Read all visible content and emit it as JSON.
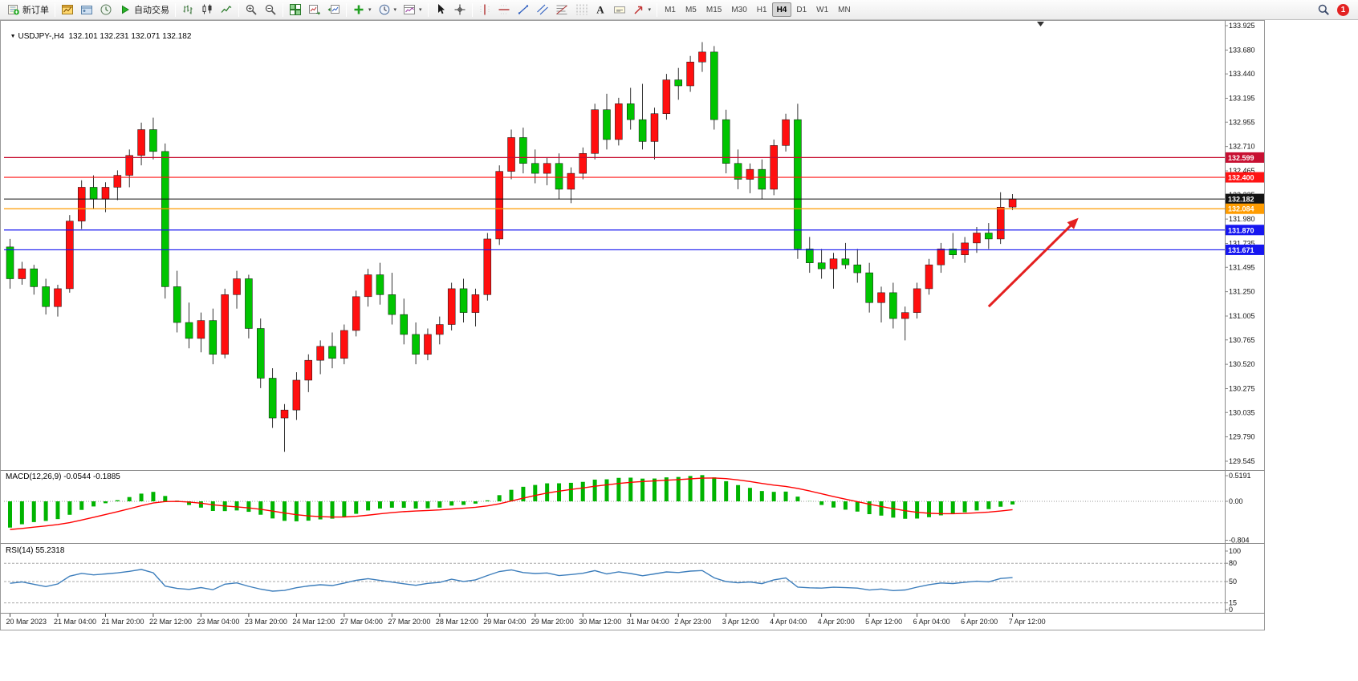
{
  "toolbar": {
    "items": [
      {
        "name": "new-order-button",
        "icon": "new-order",
        "label": "新订单"
      },
      {
        "sep": true
      },
      {
        "name": "charts-button",
        "icon": "chart-window"
      },
      {
        "name": "profiles-button",
        "icon": "profiles"
      },
      {
        "name": "market-watch-button",
        "icon": "market-watch"
      },
      {
        "name": "autotrading-button",
        "icon": "play",
        "label": "自动交易"
      },
      {
        "sep": true
      },
      {
        "name": "bars-chart-type-button",
        "icon": "bars"
      },
      {
        "name": "candles-chart-type-button",
        "icon": "candles"
      },
      {
        "name": "line-chart-type-button",
        "icon": "linechart"
      },
      {
        "sep": true
      },
      {
        "name": "zoom-in-button",
        "icon": "zoom-in"
      },
      {
        "name": "zoom-out-button",
        "icon": "zoom-out"
      },
      {
        "sep": true
      },
      {
        "name": "tile-windows-button",
        "icon": "tile"
      },
      {
        "name": "auto-scroll-button",
        "icon": "auto-scroll"
      },
      {
        "name": "chart-shift-button",
        "icon": "chart-shift"
      },
      {
        "sep": true
      },
      {
        "name": "indicators-button",
        "icon": "indicators",
        "caret": true
      },
      {
        "name": "periods-button",
        "icon": "clock",
        "caret": true
      },
      {
        "name": "templates-button",
        "icon": "template",
        "caret": true
      },
      {
        "sep": true
      },
      {
        "name": "cursor-button",
        "icon": "cursor"
      },
      {
        "name": "crosshair-button",
        "icon": "crosshair"
      },
      {
        "sep": true
      },
      {
        "name": "vertical-line-button",
        "icon": "vline"
      },
      {
        "name": "horizontal-line-button",
        "icon": "hline"
      },
      {
        "name": "trendline-button",
        "icon": "trendline"
      },
      {
        "name": "channel-button",
        "icon": "channel"
      },
      {
        "name": "fibonacci-button",
        "icon": "fibo"
      },
      {
        "name": "cycle-lines-button",
        "icon": "grid"
      },
      {
        "name": "text-button",
        "icon": "text"
      },
      {
        "name": "text-label-button",
        "icon": "textlabel"
      },
      {
        "name": "arrows-button",
        "icon": "arrows",
        "caret": true
      },
      {
        "sep": true
      }
    ],
    "timeframes": [
      "M1",
      "M5",
      "M15",
      "M30",
      "H1",
      "H4",
      "D1",
      "W1",
      "MN"
    ],
    "active_timeframe": "H4",
    "right": {
      "notification_count": "1"
    }
  },
  "chart": {
    "header": "USDJPY-,H4  132.101 132.231 132.071 132.182",
    "macd_label": "MACD(12,26,9) -0.0544 -0.1885",
    "rsi_label": "RSI(14) 55.2318"
  },
  "chart_data": {
    "type": "candlestick",
    "symbol": "USDJPY-",
    "timeframe": "H4",
    "current_ohlc": {
      "open": 132.101,
      "high": 132.231,
      "low": 132.071,
      "close": 132.182
    },
    "bull_color": "#ff0f0f",
    "bear_color": "#00c400",
    "price_axis_ticks": [
      "133.925",
      "133.680",
      "133.440",
      "133.195",
      "132.955",
      "132.710",
      "132.465",
      "132.225",
      "131.980",
      "131.735",
      "131.495",
      "131.250",
      "131.005",
      "130.765",
      "130.520",
      "130.275",
      "130.035",
      "129.790",
      "129.545"
    ],
    "time_labels": [
      "20 Mar 2023",
      "21 Mar 04:00",
      "21 Mar 20:00",
      "22 Mar 12:00",
      "23 Mar 04:00",
      "23 Mar 20:00",
      "24 Mar 12:00",
      "27 Mar 04:00",
      "27 Mar 20:00",
      "28 Mar 12:00",
      "29 Mar 04:00",
      "29 Mar 20:00",
      "30 Mar 12:00",
      "31 Mar 04:00",
      "2 Apr 23:00",
      "3 Apr 12:00",
      "4 Apr 04:00",
      "4 Apr 20:00",
      "5 Apr 12:00",
      "6 Apr 04:00",
      "6 Apr 20:00",
      "7 Apr 12:00"
    ],
    "bars_per_label": 4,
    "candles": [
      [
        131.7,
        131.78,
        131.28,
        131.38
      ],
      [
        131.38,
        131.55,
        131.32,
        131.48
      ],
      [
        131.48,
        131.52,
        131.22,
        131.3
      ],
      [
        131.3,
        131.38,
        131.02,
        131.1
      ],
      [
        131.1,
        131.32,
        131.0,
        131.28
      ],
      [
        131.28,
        132.02,
        131.24,
        131.96
      ],
      [
        131.96,
        132.37,
        131.88,
        132.3
      ],
      [
        132.3,
        132.42,
        132.08,
        132.18
      ],
      [
        132.18,
        132.35,
        132.05,
        132.3
      ],
      [
        132.3,
        132.47,
        132.17,
        132.42
      ],
      [
        132.42,
        132.68,
        132.3,
        132.62
      ],
      [
        132.62,
        132.95,
        132.52,
        132.88
      ],
      [
        132.88,
        133.0,
        132.58,
        132.66
      ],
      [
        132.66,
        132.74,
        131.18,
        131.3
      ],
      [
        131.3,
        131.46,
        130.84,
        130.94
      ],
      [
        130.94,
        131.14,
        130.68,
        130.78
      ],
      [
        130.78,
        131.04,
        130.64,
        130.96
      ],
      [
        130.96,
        131.08,
        130.52,
        130.62
      ],
      [
        130.62,
        131.28,
        130.58,
        131.22
      ],
      [
        131.22,
        131.46,
        131.08,
        131.38
      ],
      [
        131.38,
        131.42,
        130.78,
        130.88
      ],
      [
        130.88,
        130.98,
        130.28,
        130.38
      ],
      [
        130.38,
        130.48,
        129.88,
        129.98
      ],
      [
        129.98,
        130.12,
        129.64,
        130.06
      ],
      [
        130.06,
        130.44,
        129.96,
        130.36
      ],
      [
        130.36,
        130.62,
        130.24,
        130.56
      ],
      [
        130.56,
        130.76,
        130.42,
        130.7
      ],
      [
        130.7,
        130.84,
        130.48,
        130.58
      ],
      [
        130.58,
        130.92,
        130.52,
        130.86
      ],
      [
        130.86,
        131.26,
        130.8,
        131.2
      ],
      [
        131.2,
        131.48,
        131.1,
        131.42
      ],
      [
        131.42,
        131.54,
        131.12,
        131.22
      ],
      [
        131.22,
        131.44,
        130.92,
        131.02
      ],
      [
        131.02,
        131.18,
        130.72,
        130.82
      ],
      [
        130.82,
        130.94,
        130.52,
        130.62
      ],
      [
        130.62,
        130.88,
        130.56,
        130.82
      ],
      [
        130.82,
        131.0,
        130.72,
        130.92
      ],
      [
        130.92,
        131.34,
        130.86,
        131.28
      ],
      [
        131.28,
        131.38,
        130.94,
        131.04
      ],
      [
        131.04,
        131.28,
        130.9,
        131.22
      ],
      [
        131.22,
        131.84,
        131.16,
        131.78
      ],
      [
        131.78,
        132.52,
        131.72,
        132.46
      ],
      [
        132.46,
        132.88,
        132.38,
        132.8
      ],
      [
        132.8,
        132.9,
        132.44,
        132.54
      ],
      [
        132.54,
        132.68,
        132.34,
        132.44
      ],
      [
        132.44,
        132.6,
        132.32,
        132.54
      ],
      [
        132.54,
        132.64,
        132.18,
        132.28
      ],
      [
        132.28,
        132.5,
        132.14,
        132.44
      ],
      [
        132.44,
        132.7,
        132.38,
        132.64
      ],
      [
        132.64,
        133.14,
        132.58,
        133.08
      ],
      [
        133.08,
        133.24,
        132.68,
        132.78
      ],
      [
        132.78,
        133.2,
        132.72,
        133.14
      ],
      [
        133.14,
        133.3,
        132.88,
        132.98
      ],
      [
        132.98,
        133.34,
        132.68,
        132.76
      ],
      [
        132.76,
        133.1,
        132.58,
        133.04
      ],
      [
        133.04,
        133.44,
        132.98,
        133.38
      ],
      [
        133.38,
        133.5,
        133.18,
        133.32
      ],
      [
        133.32,
        133.62,
        133.26,
        133.56
      ],
      [
        133.56,
        133.76,
        133.46,
        133.66
      ],
      [
        133.66,
        133.72,
        132.88,
        132.98
      ],
      [
        132.98,
        133.08,
        132.44,
        132.54
      ],
      [
        132.54,
        132.68,
        132.28,
        132.38
      ],
      [
        132.38,
        132.54,
        132.24,
        132.48
      ],
      [
        132.48,
        132.58,
        132.18,
        132.28
      ],
      [
        132.28,
        132.78,
        132.22,
        132.72
      ],
      [
        132.72,
        133.04,
        132.66,
        132.98
      ],
      [
        132.98,
        133.14,
        131.58,
        131.68
      ],
      [
        131.68,
        131.8,
        131.44,
        131.54
      ],
      [
        131.54,
        131.68,
        131.38,
        131.48
      ],
      [
        131.48,
        131.64,
        131.28,
        131.58
      ],
      [
        131.58,
        131.74,
        131.48,
        131.52
      ],
      [
        131.52,
        131.68,
        131.34,
        131.44
      ],
      [
        131.44,
        131.54,
        131.04,
        131.14
      ],
      [
        131.14,
        131.3,
        130.94,
        131.24
      ],
      [
        131.24,
        131.34,
        130.88,
        130.98
      ],
      [
        130.98,
        131.1,
        130.76,
        131.04
      ],
      [
        131.04,
        131.34,
        130.98,
        131.28
      ],
      [
        131.28,
        131.58,
        131.22,
        131.52
      ],
      [
        131.52,
        131.74,
        131.44,
        131.68
      ],
      [
        131.68,
        131.84,
        131.58,
        131.62
      ],
      [
        131.62,
        131.8,
        131.54,
        131.74
      ],
      [
        131.74,
        131.9,
        131.64,
        131.84
      ],
      [
        131.84,
        131.94,
        131.68,
        131.78
      ],
      [
        131.78,
        132.25,
        131.73,
        132.1
      ],
      [
        132.101,
        132.231,
        132.071,
        132.182
      ]
    ],
    "hlines": [
      {
        "price": 132.599,
        "label": "132.599",
        "color": "#c81032"
      },
      {
        "price": 132.4,
        "label": "132.400",
        "color": "#ff1414"
      },
      {
        "price": 132.182,
        "label": "132.182",
        "color": "#141414",
        "is_current": true
      },
      {
        "price": 132.084,
        "label": "132.084",
        "color": "#ff9c00"
      },
      {
        "price": 131.87,
        "label": "131.870",
        "color": "#1616f0"
      },
      {
        "price": 131.671,
        "label": "131.671",
        "color": "#1616f0"
      }
    ],
    "trend_arrow": {
      "from_bar": 82,
      "from_price": 131.1,
      "to_bar": 89,
      "to_price": 131.93,
      "color": "#e42020"
    },
    "macd": {
      "params": "12,26,9",
      "value": -0.0544,
      "signal": -0.1885,
      "scale_labels": [
        "0.5191",
        "0.00",
        "-0.804"
      ],
      "histogram_color": "#00b400",
      "signal_color": "#ff0000"
    },
    "rsi": {
      "period": 14,
      "value": 55.2318,
      "scale_labels": [
        "100",
        "80",
        "50",
        "15",
        "0"
      ],
      "levels": [
        80,
        50,
        15
      ],
      "line_color": "#3d7ebc"
    }
  }
}
